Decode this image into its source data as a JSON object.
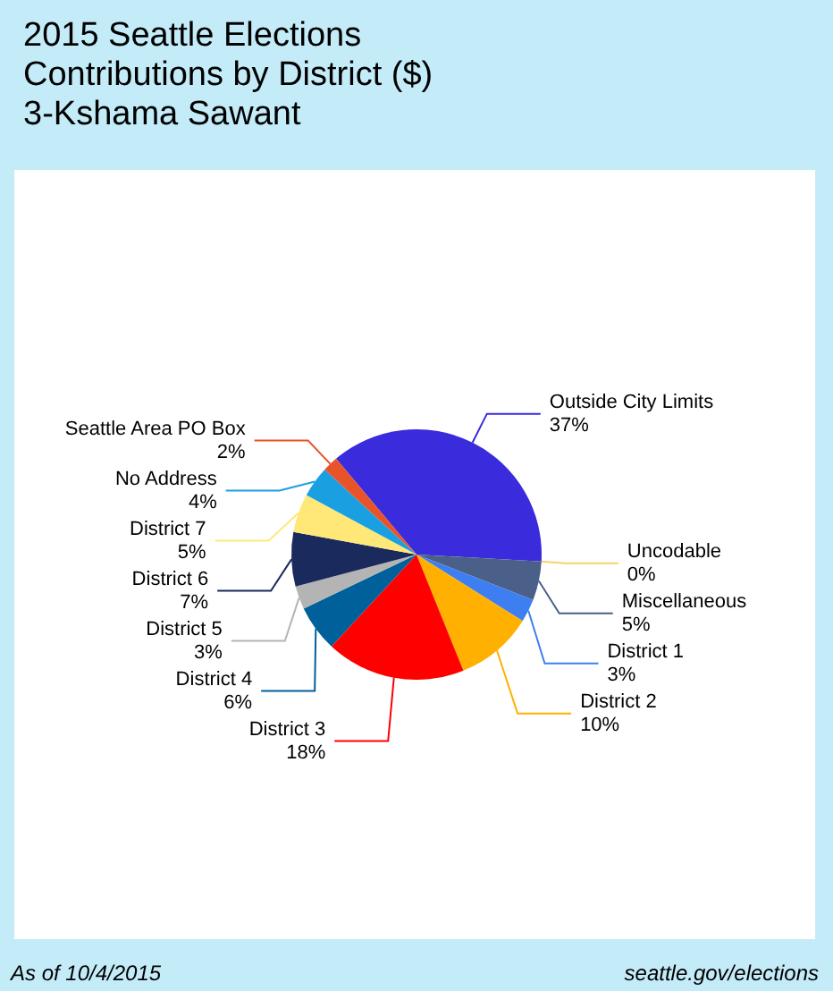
{
  "chart_data": {
    "type": "pie",
    "title": "2015 Seattle Elections\nContributions by District ($)\n3-Kshama Sawant",
    "categories": [
      "Outside City Limits",
      "Uncodable",
      "Miscellaneous",
      "District 1",
      "District 2",
      "District 3",
      "District 4",
      "District 5",
      "District 6",
      "District 7",
      "No Address",
      "Seattle Area PO Box"
    ],
    "values": [
      37,
      0,
      5,
      3,
      10,
      18,
      6,
      3,
      7,
      5,
      4,
      2
    ],
    "value_labels": [
      "37%",
      "0%",
      "5%",
      "3%",
      "10%",
      "18%",
      "6%",
      "3%",
      "7%",
      "5%",
      "4%",
      "2%"
    ],
    "colors": [
      "#3a2bdc",
      "#f5d26a",
      "#4b6088",
      "#3d7ff0",
      "#ffb000",
      "#ff0000",
      "#00609a",
      "#b4b4b4",
      "#1b2a5c",
      "#ffe878",
      "#1aa0e0",
      "#e8532a"
    ],
    "annotations": [
      "As of 10/4/2015",
      "seattle.gov/elections"
    ]
  }
}
